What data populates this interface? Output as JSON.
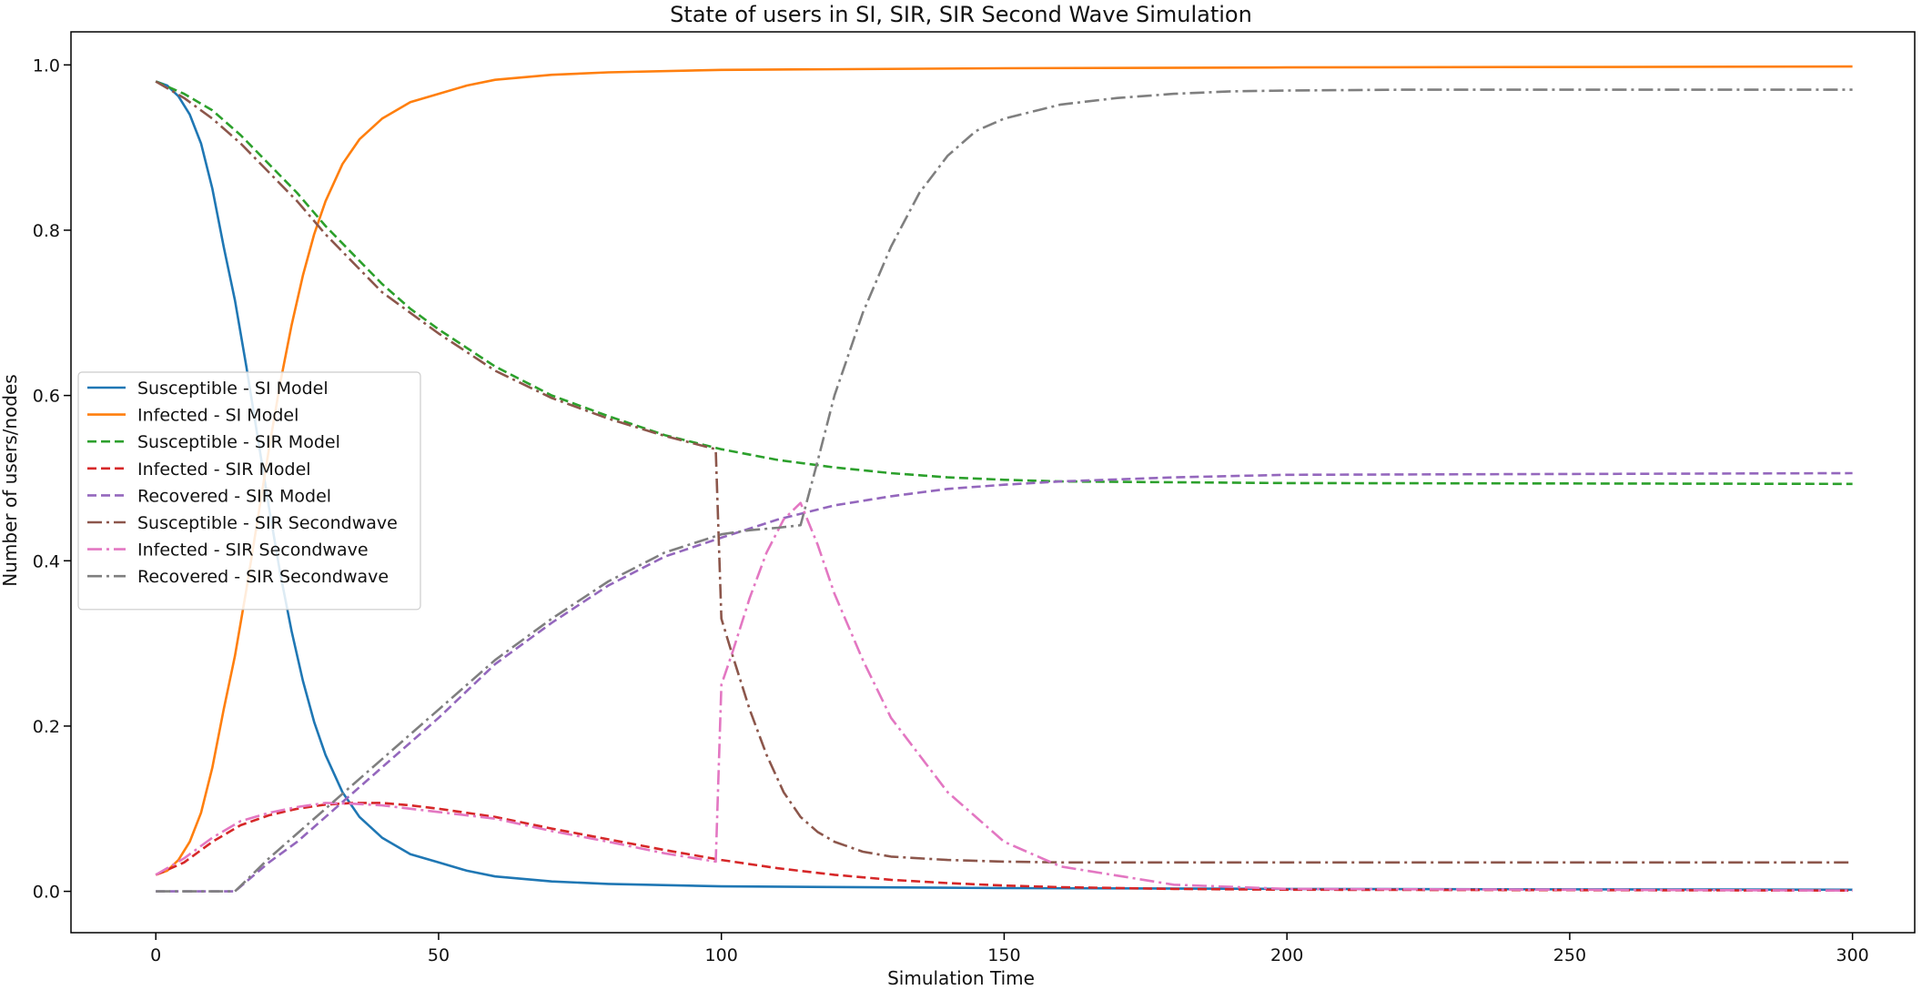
{
  "chart_data": {
    "type": "line",
    "title": "State of users in SI, SIR, SIR Second Wave Simulation",
    "xlabel": "Simulation Time",
    "ylabel": "Number of users/nodes",
    "xlim": [
      -15,
      311
    ],
    "ylim": [
      -0.05,
      1.04
    ],
    "xticks": [
      0,
      50,
      100,
      150,
      200,
      250,
      300
    ],
    "yticks": [
      0.0,
      0.2,
      0.4,
      0.6,
      0.8,
      1.0
    ],
    "grid": false,
    "legend_position": "center-left",
    "series": [
      {
        "name": "Susceptible - SI Model",
        "color": "#1f77b4",
        "dash": "solid",
        "x": [
          0,
          2,
          4,
          6,
          8,
          10,
          12,
          14,
          16,
          18,
          20,
          22,
          24,
          26,
          28,
          30,
          33,
          36,
          40,
          45,
          50,
          55,
          60,
          70,
          80,
          100,
          150,
          200,
          300
        ],
        "y": [
          0.98,
          0.975,
          0.962,
          0.94,
          0.905,
          0.85,
          0.78,
          0.715,
          0.635,
          0.55,
          0.465,
          0.385,
          0.315,
          0.255,
          0.205,
          0.165,
          0.12,
          0.09,
          0.065,
          0.045,
          0.035,
          0.025,
          0.018,
          0.012,
          0.009,
          0.006,
          0.004,
          0.003,
          0.002
        ]
      },
      {
        "name": "Infected - SI Model",
        "color": "#ff7f0e",
        "dash": "solid",
        "x": [
          0,
          2,
          4,
          6,
          8,
          10,
          12,
          14,
          16,
          18,
          20,
          22,
          24,
          26,
          28,
          30,
          33,
          36,
          40,
          45,
          50,
          55,
          60,
          70,
          80,
          100,
          150,
          200,
          300
        ],
        "y": [
          0.02,
          0.025,
          0.038,
          0.06,
          0.095,
          0.15,
          0.22,
          0.285,
          0.365,
          0.45,
          0.535,
          0.615,
          0.685,
          0.745,
          0.795,
          0.835,
          0.88,
          0.91,
          0.935,
          0.955,
          0.965,
          0.975,
          0.982,
          0.988,
          0.991,
          0.994,
          0.996,
          0.997,
          0.998
        ]
      },
      {
        "name": "Susceptible - SIR Model",
        "color": "#2ca02c",
        "dash": "dashed",
        "x": [
          0,
          5,
          10,
          15,
          20,
          25,
          30,
          35,
          40,
          45,
          50,
          60,
          70,
          80,
          90,
          100,
          110,
          120,
          130,
          140,
          150,
          160,
          180,
          200,
          300
        ],
        "y": [
          0.98,
          0.965,
          0.945,
          0.915,
          0.88,
          0.845,
          0.805,
          0.77,
          0.735,
          0.705,
          0.68,
          0.635,
          0.6,
          0.575,
          0.552,
          0.535,
          0.522,
          0.513,
          0.506,
          0.501,
          0.498,
          0.496,
          0.495,
          0.494,
          0.493
        ]
      },
      {
        "name": "Infected - SIR Model",
        "color": "#d62728",
        "dash": "dashed",
        "x": [
          0,
          5,
          10,
          15,
          20,
          25,
          30,
          35,
          40,
          45,
          50,
          60,
          70,
          80,
          90,
          100,
          110,
          120,
          130,
          140,
          150,
          160,
          180,
          200,
          300
        ],
        "y": [
          0.02,
          0.035,
          0.06,
          0.08,
          0.092,
          0.1,
          0.105,
          0.107,
          0.107,
          0.104,
          0.1,
          0.09,
          0.076,
          0.063,
          0.05,
          0.038,
          0.028,
          0.02,
          0.014,
          0.01,
          0.007,
          0.005,
          0.003,
          0.002,
          0.001
        ]
      },
      {
        "name": "Recovered - SIR Model",
        "color": "#9467bd",
        "dash": "dashed",
        "x": [
          0,
          14,
          20,
          25,
          30,
          35,
          40,
          45,
          50,
          60,
          70,
          80,
          90,
          100,
          110,
          120,
          130,
          140,
          150,
          160,
          180,
          200,
          300
        ],
        "y": [
          0.0,
          0.0,
          0.035,
          0.06,
          0.09,
          0.12,
          0.15,
          0.18,
          0.21,
          0.275,
          0.325,
          0.37,
          0.405,
          0.428,
          0.45,
          0.467,
          0.478,
          0.487,
          0.492,
          0.496,
          0.501,
          0.504,
          0.506
        ]
      },
      {
        "name": "Susceptible - SIR Secondwave",
        "color": "#8c564b",
        "dash": "dashdot",
        "x": [
          0,
          5,
          10,
          15,
          20,
          25,
          30,
          35,
          40,
          45,
          50,
          60,
          70,
          80,
          90,
          99,
          100,
          102,
          105,
          108,
          111,
          114,
          117,
          120,
          125,
          130,
          140,
          150,
          160,
          180,
          200,
          300
        ],
        "y": [
          0.98,
          0.96,
          0.935,
          0.905,
          0.87,
          0.835,
          0.795,
          0.76,
          0.725,
          0.7,
          0.675,
          0.63,
          0.597,
          0.572,
          0.551,
          0.535,
          0.33,
          0.285,
          0.22,
          0.165,
          0.12,
          0.09,
          0.072,
          0.06,
          0.048,
          0.042,
          0.038,
          0.036,
          0.035,
          0.035,
          0.035,
          0.035
        ]
      },
      {
        "name": "Infected - SIR Secondwave",
        "color": "#e377c2",
        "dash": "dashdot",
        "x": [
          0,
          5,
          10,
          15,
          20,
          25,
          30,
          35,
          40,
          45,
          50,
          60,
          70,
          80,
          90,
          99,
          100,
          102,
          105,
          108,
          111,
          114,
          117,
          120,
          125,
          130,
          140,
          150,
          160,
          180,
          200,
          300
        ],
        "y": [
          0.02,
          0.04,
          0.065,
          0.085,
          0.095,
          0.102,
          0.107,
          0.106,
          0.104,
          0.1,
          0.096,
          0.088,
          0.073,
          0.06,
          0.046,
          0.036,
          0.25,
          0.29,
          0.355,
          0.41,
          0.45,
          0.47,
          0.42,
          0.36,
          0.28,
          0.21,
          0.12,
          0.06,
          0.03,
          0.008,
          0.003,
          0.001
        ]
      },
      {
        "name": "Recovered - SIR Secondwave",
        "color": "#7f7f7f",
        "dash": "dashdot",
        "x": [
          0,
          14,
          20,
          25,
          30,
          35,
          40,
          45,
          50,
          60,
          70,
          80,
          90,
          100,
          105,
          110,
          114,
          117,
          120,
          125,
          130,
          135,
          140,
          145,
          150,
          160,
          170,
          180,
          190,
          200,
          220,
          300
        ],
        "y": [
          0.0,
          0.0,
          0.04,
          0.07,
          0.1,
          0.13,
          0.16,
          0.19,
          0.22,
          0.28,
          0.33,
          0.375,
          0.41,
          0.432,
          0.437,
          0.44,
          0.443,
          0.52,
          0.6,
          0.7,
          0.78,
          0.845,
          0.89,
          0.92,
          0.935,
          0.952,
          0.96,
          0.965,
          0.968,
          0.969,
          0.97,
          0.97
        ]
      }
    ]
  }
}
